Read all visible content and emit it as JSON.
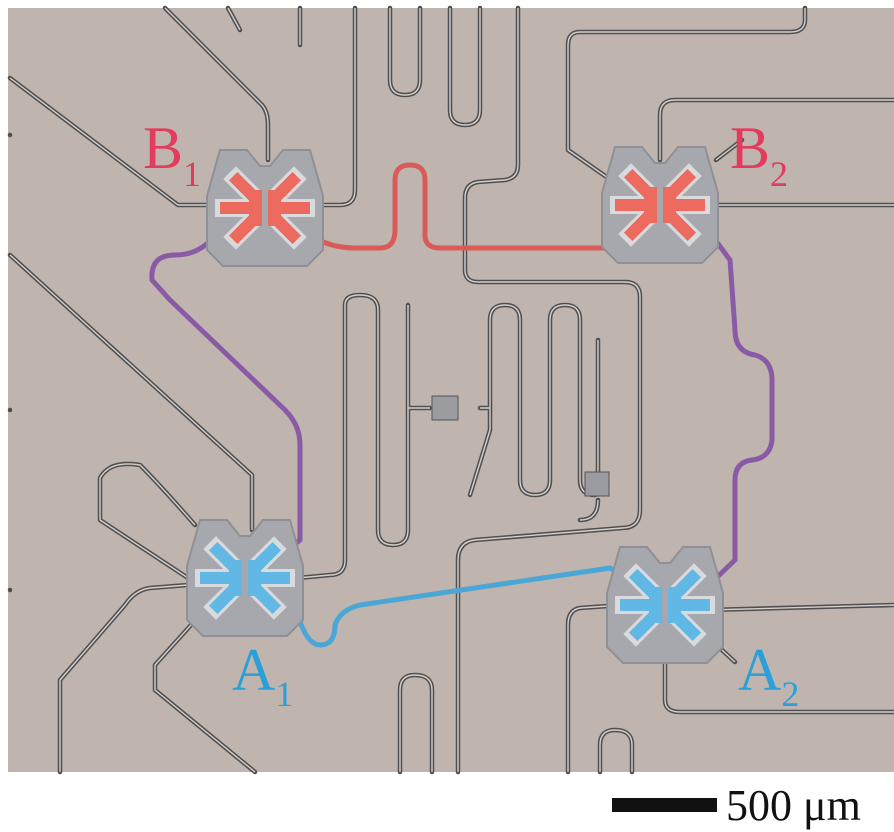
{
  "labels": [
    {
      "letter": "B",
      "subscript": "1"
    },
    {
      "letter": "B",
      "subscript": "2"
    },
    {
      "letter": "A",
      "subscript": "1"
    },
    {
      "letter": "A",
      "subscript": "2"
    }
  ],
  "scale_bar": {
    "label": "500 μm"
  }
}
